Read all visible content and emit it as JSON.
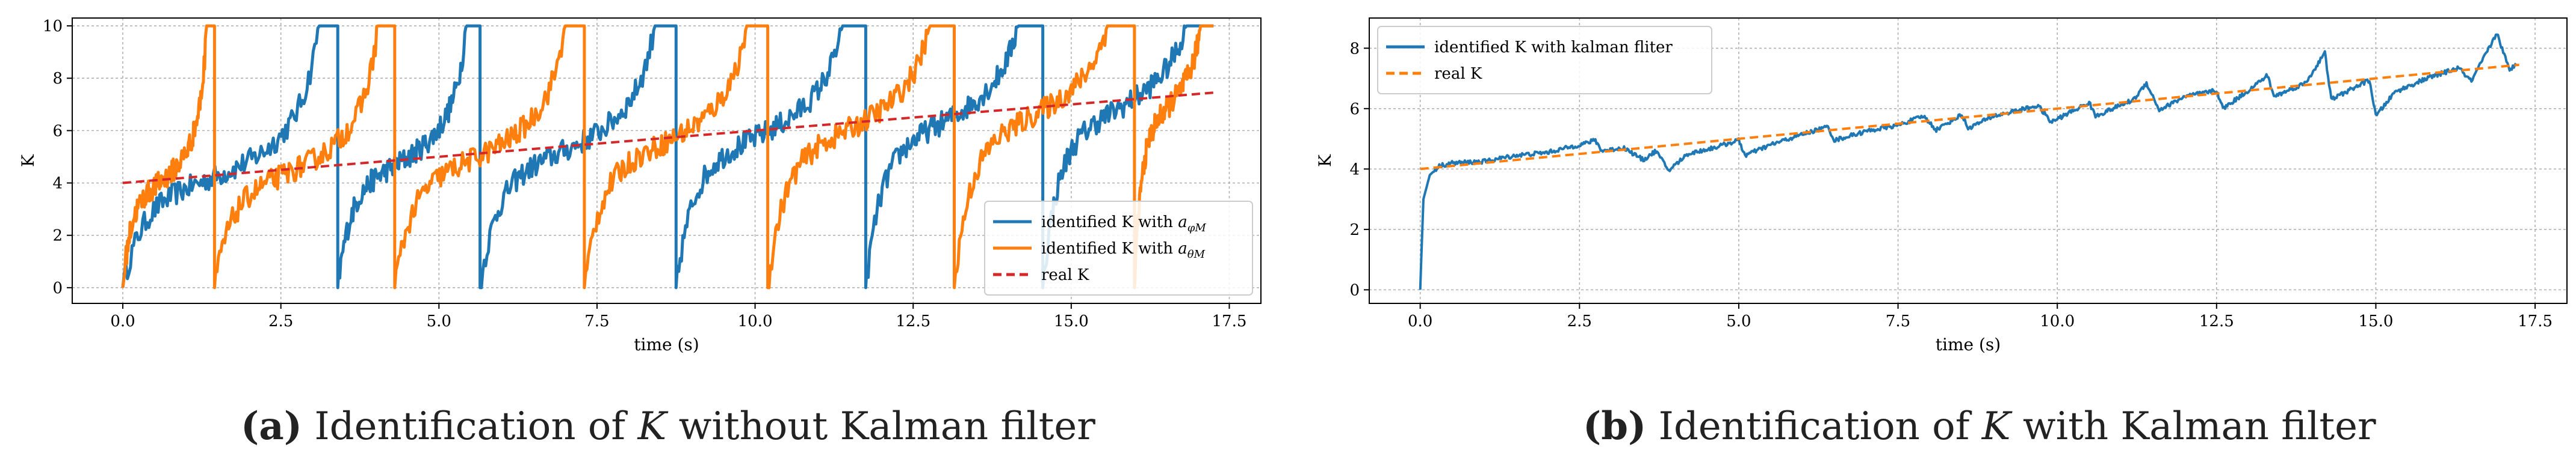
{
  "chart_data": [
    {
      "type": "line",
      "panel": "a",
      "title": "",
      "xlabel": "time (s)",
      "ylabel": "K",
      "xlim": [
        -0.8,
        18.0
      ],
      "ylim": [
        -0.6,
        10.3
      ],
      "xticks": [
        0.0,
        2.5,
        5.0,
        7.5,
        10.0,
        12.5,
        15.0,
        17.5
      ],
      "xtick_labels": [
        "0.0",
        "2.5",
        "5.0",
        "7.5",
        "10.0",
        "12.5",
        "15.0",
        "17.5"
      ],
      "yticks": [
        0,
        2,
        4,
        6,
        8,
        10
      ],
      "ytick_labels": [
        "0",
        "2",
        "4",
        "6",
        "8",
        "10"
      ],
      "grid": true,
      "legend_position": "lower-right",
      "series": [
        {
          "name": "identified K with a_φM",
          "legend_prefix": "identified K with ",
          "legend_math": "a",
          "legend_sub": "φM",
          "color": "#1f77b4",
          "style": "solid",
          "start": 0.0,
          "end": 17.25,
          "resets": [
            3.4,
            5.65,
            8.75,
            11.75,
            14.55
          ],
          "saturate_at": 10.0
        },
        {
          "name": "identified K with a_θM",
          "legend_prefix": "identified K with ",
          "legend_math": "a",
          "legend_sub": "θM",
          "color": "#ff7f0e",
          "style": "solid",
          "start": 0.0,
          "end": 17.25,
          "resets": [
            1.45,
            4.3,
            7.3,
            10.2,
            13.15,
            16.0
          ],
          "saturate_at": 10.0
        },
        {
          "name": "real K",
          "legend_prefix": "real K",
          "color": "#d62728",
          "style": "dashed",
          "x": [
            0.0,
            17.25
          ],
          "y": [
            4.0,
            7.45
          ]
        }
      ]
    },
    {
      "type": "line",
      "panel": "b",
      "title": "",
      "xlabel": "time (s)",
      "ylabel": "K",
      "xlim": [
        -0.8,
        18.0
      ],
      "ylim": [
        -0.45,
        9.0
      ],
      "xticks": [
        0.0,
        2.5,
        5.0,
        7.5,
        10.0,
        12.5,
        15.0,
        17.5
      ],
      "xtick_labels": [
        "0.0",
        "2.5",
        "5.0",
        "7.5",
        "10.0",
        "12.5",
        "15.0",
        "17.5"
      ],
      "yticks": [
        0,
        2,
        4,
        6,
        8
      ],
      "ytick_labels": [
        "0",
        "2",
        "4",
        "6",
        "8"
      ],
      "grid": true,
      "legend_position": "upper-left",
      "series": [
        {
          "name": "identified K with kalman fliter",
          "legend_prefix": "identified K with kalman fliter",
          "color": "#1f77b4",
          "style": "solid",
          "x": [
            0.0,
            0.05,
            0.15,
            0.3,
            0.5,
            1.0,
            1.5,
            2.0,
            2.5,
            2.75,
            2.85,
            3.2,
            3.5,
            3.7,
            3.9,
            4.2,
            4.6,
            5.0,
            5.1,
            5.5,
            6.0,
            6.4,
            6.5,
            7.0,
            7.5,
            7.9,
            8.1,
            8.5,
            8.6,
            9.0,
            9.5,
            9.7,
            9.9,
            10.5,
            10.6,
            11.2,
            11.4,
            11.6,
            12.0,
            12.5,
            12.6,
            13.0,
            13.3,
            13.4,
            13.9,
            14.2,
            14.3,
            14.9,
            15.0,
            15.3,
            15.8,
            16.3,
            16.5,
            16.9,
            17.1,
            17.2
          ],
          "y": [
            0.0,
            3.0,
            3.8,
            4.1,
            4.2,
            4.25,
            4.45,
            4.55,
            4.8,
            4.95,
            4.6,
            4.7,
            4.3,
            4.6,
            3.95,
            4.5,
            4.7,
            4.95,
            4.45,
            4.8,
            5.15,
            5.4,
            4.95,
            5.25,
            5.45,
            5.75,
            5.3,
            5.8,
            5.35,
            5.75,
            6.0,
            6.1,
            5.55,
            6.2,
            5.75,
            6.3,
            6.85,
            5.95,
            6.4,
            6.6,
            6.0,
            6.6,
            7.1,
            6.4,
            6.85,
            7.85,
            6.3,
            6.95,
            5.75,
            6.55,
            7.0,
            7.35,
            6.9,
            8.5,
            7.25,
            7.5
          ]
        },
        {
          "name": "real K",
          "legend_prefix": "real K",
          "color": "#ff7f0e",
          "style": "dashed",
          "x": [
            0.0,
            17.25
          ],
          "y": [
            4.0,
            7.45
          ]
        }
      ]
    }
  ],
  "captions": {
    "a": {
      "label": "(a)",
      "text_before": " Identification of ",
      "var": "K",
      "text_after": " without Kalman filter"
    },
    "b": {
      "label": "(b)",
      "text_before": " Identification of ",
      "var": "K",
      "text_after": " with Kalman filter"
    }
  }
}
